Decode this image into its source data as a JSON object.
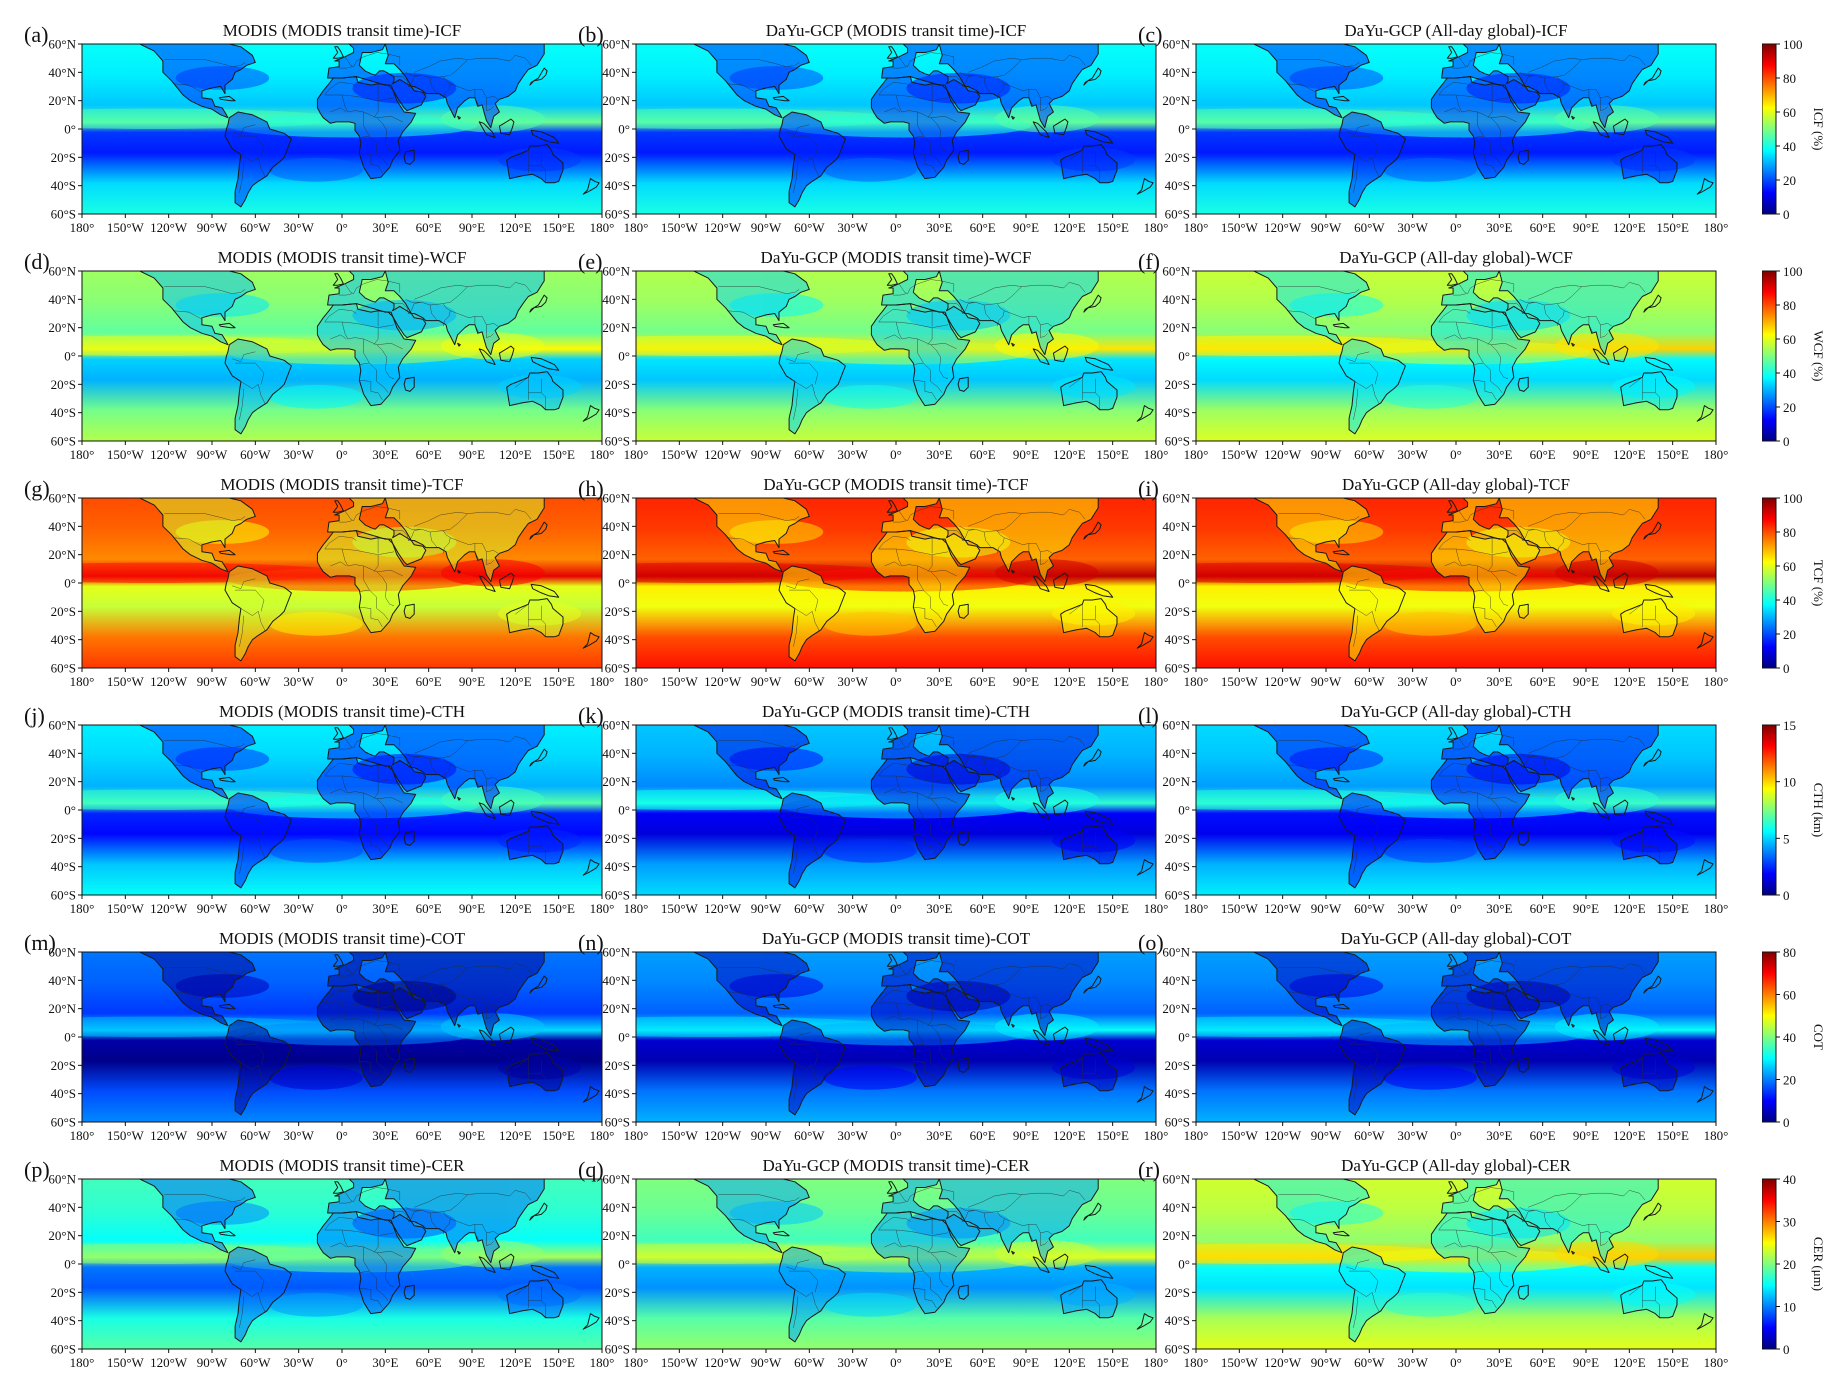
{
  "lat_ticks": [
    "60°N",
    "40°N",
    "20°N",
    "0°",
    "20°S",
    "40°S",
    "60°S"
  ],
  "lon_ticks": [
    "180°",
    "150°W",
    "120°W",
    "90°W",
    "60°W",
    "30°W",
    "0°",
    "30°E",
    "60°E",
    "90°E",
    "120°E",
    "150°E",
    "180°"
  ],
  "colors": {
    "jet": [
      "#00007f",
      "#0000ff",
      "#007fff",
      "#00ffff",
      "#7fff7f",
      "#ffff00",
      "#ff7f00",
      "#ff0000",
      "#7f0000"
    ]
  },
  "rows": [
    {
      "variable": "ICF",
      "colorbar": {
        "label": "ICF (%)",
        "ticks": [
          "0",
          "20",
          "40",
          "60",
          "80",
          "100"
        ]
      },
      "panels": [
        {
          "letter": "(a)",
          "title": "MODIS (MODIS transit time)-ICF",
          "level": 0.3
        },
        {
          "letter": "(b)",
          "title": "DaYu-GCP (MODIS transit time)-ICF",
          "level": 0.3
        },
        {
          "letter": "(c)",
          "title": "DaYu-GCP (All-day global)-ICF",
          "level": 0.3
        }
      ]
    },
    {
      "variable": "WCF",
      "colorbar": {
        "label": "WCF (%)",
        "ticks": [
          "0",
          "20",
          "40",
          "60",
          "80",
          "100"
        ]
      },
      "panels": [
        {
          "letter": "(d)",
          "title": "MODIS (MODIS transit time)-WCF",
          "level": 0.45
        },
        {
          "letter": "(e)",
          "title": "DaYu-GCP (MODIS transit time)-WCF",
          "level": 0.47
        },
        {
          "letter": "(f)",
          "title": "DaYu-GCP (All-day global)-WCF",
          "level": 0.49
        }
      ]
    },
    {
      "variable": "TCF",
      "colorbar": {
        "label": "TCF (%)",
        "ticks": [
          "0",
          "20",
          "40",
          "60",
          "80",
          "100"
        ]
      },
      "panels": [
        {
          "letter": "(g)",
          "title": "MODIS (MODIS transit time)-TCF",
          "level": 0.72
        },
        {
          "letter": "(h)",
          "title": "DaYu-GCP (MODIS transit time)-TCF",
          "level": 0.76
        },
        {
          "letter": "(i)",
          "title": "DaYu-GCP (All-day global)-TCF",
          "level": 0.76
        }
      ]
    },
    {
      "variable": "CTH",
      "colorbar": {
        "label": "CTH (km)",
        "ticks": [
          "0",
          "5",
          "10",
          "15"
        ]
      },
      "panels": [
        {
          "letter": "(j)",
          "title": "MODIS (MODIS transit time)-CTH",
          "level": 0.28
        },
        {
          "letter": "(k)",
          "title": "DaYu-GCP (MODIS transit time)-CTH",
          "level": 0.24
        },
        {
          "letter": "(l)",
          "title": "DaYu-GCP (All-day global)-CTH",
          "level": 0.26
        }
      ]
    },
    {
      "variable": "COT",
      "colorbar": {
        "label": "COT",
        "ticks": [
          "0",
          "20",
          "40",
          "60",
          "80"
        ]
      },
      "panels": [
        {
          "letter": "(m)",
          "title": "MODIS (MODIS transit time)-COT",
          "level": 0.16
        },
        {
          "letter": "(n)",
          "title": "DaYu-GCP (MODIS transit time)-COT",
          "level": 0.2
        },
        {
          "letter": "(o)",
          "title": "DaYu-GCP (All-day global)-COT",
          "level": 0.2
        }
      ]
    },
    {
      "variable": "CER",
      "colorbar": {
        "label": "CER (μm)",
        "ticks": [
          "0",
          "10",
          "20",
          "30",
          "40"
        ]
      },
      "panels": [
        {
          "letter": "(p)",
          "title": "MODIS (MODIS transit time)-CER",
          "level": 0.36
        },
        {
          "letter": "(q)",
          "title": "DaYu-GCP (MODIS transit time)-CER",
          "level": 0.42
        },
        {
          "letter": "(r)",
          "title": "DaYu-GCP (All-day global)-CER",
          "level": 0.5
        }
      ]
    }
  ]
}
